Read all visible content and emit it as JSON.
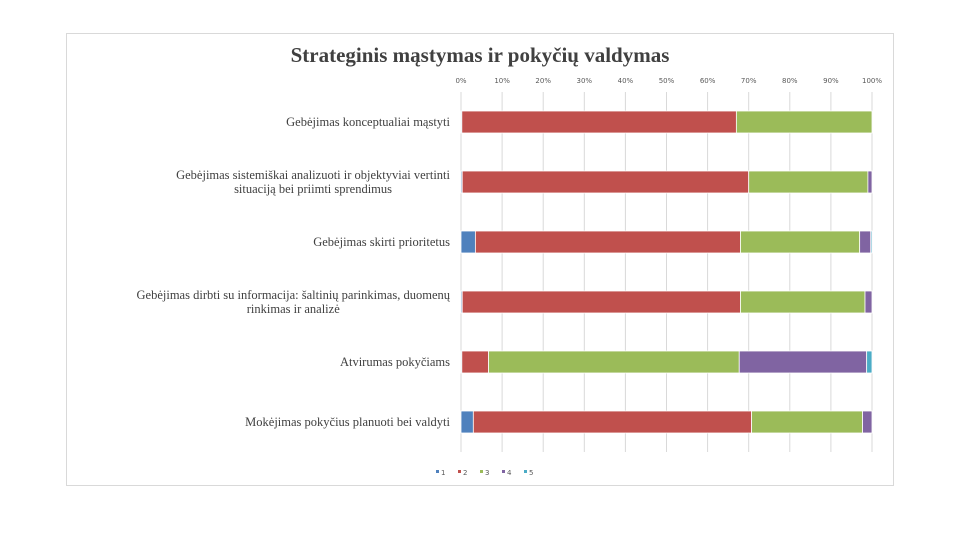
{
  "chart_data": {
    "type": "bar",
    "orientation": "horizontal",
    "stacked": "percent",
    "title": "Strateginis mąstymas ir pokyčių valdymas",
    "x_ticks": [
      "0%",
      "10%",
      "20%",
      "30%",
      "40%",
      "50%",
      "60%",
      "70%",
      "80%",
      "90%",
      "100%"
    ],
    "xlim": [
      0,
      100
    ],
    "grid": true,
    "legend_position": "bottom-left",
    "categories": [
      "Gebėjimas konceptualiai mąstyti",
      "Gebėjimas sistemiškai analizuoti ir objektyviai vertinti situaciją bei priimti sprendimus",
      "Gebėjimas skirti prioritetus",
      "Gebėjimas dirbti su informacija: šaltinių parinkimas, duomenų rinkimas ir analizė",
      "Atvirumas pokyčiams",
      "Mokėjimas pokyčius planuoti bei valdyti"
    ],
    "series": [
      {
        "name": "1",
        "color": "#4f81bd",
        "values": [
          0.2,
          0.3,
          3.5,
          0.3,
          0.2,
          3.0
        ]
      },
      {
        "name": "2",
        "color": "#c0504d",
        "values": [
          66.8,
          69.7,
          64.5,
          67.7,
          6.5,
          67.7
        ]
      },
      {
        "name": "3",
        "color": "#9bbb59",
        "values": [
          33.0,
          29.0,
          29.0,
          30.3,
          61.0,
          27.0
        ]
      },
      {
        "name": "4",
        "color": "#8064a2",
        "values": [
          0.0,
          1.0,
          2.7,
          1.7,
          31.0,
          2.3
        ]
      },
      {
        "name": "5",
        "color": "#4bacc6",
        "values": [
          0.0,
          0.0,
          0.3,
          0.0,
          1.3,
          0.0
        ]
      }
    ]
  }
}
